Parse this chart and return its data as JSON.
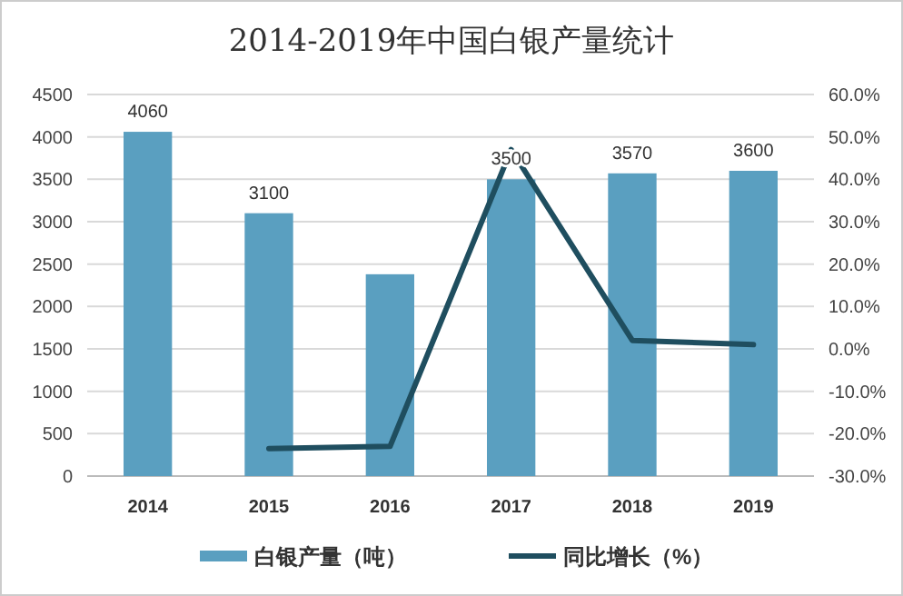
{
  "chart_data": {
    "type": "bar",
    "title": "2014-2019年中国白银产量统计",
    "categories": [
      "2014",
      "2015",
      "2016",
      "2017",
      "2018",
      "2019"
    ],
    "series": [
      {
        "name": "白银产量（吨）",
        "color": "#5a9fc0",
        "values": [
          4060,
          3100,
          2380,
          3500,
          3570,
          3600
        ],
        "value_labels": [
          "4060",
          "3100",
          null,
          "3500",
          "3570",
          "3600"
        ]
      },
      {
        "name": "同比增长（%）",
        "type": "line",
        "axis": "y2",
        "color": "#1f4e5f",
        "values": [
          null,
          -23.5,
          -23,
          47,
          2,
          1
        ]
      }
    ],
    "ylim": [
      0,
      4500
    ],
    "yticks": [
      0,
      500,
      1000,
      1500,
      2000,
      2500,
      3000,
      3500,
      4000,
      4500
    ],
    "y2lim": [
      -30,
      60
    ],
    "y2ticks": [
      {
        "value": -30,
        "label": "-30.0%"
      },
      {
        "value": -20,
        "label": "-20.0%"
      },
      {
        "value": -10,
        "label": "-10.0%"
      },
      {
        "value": 0,
        "label": "0.0%"
      },
      {
        "value": 10,
        "label": "10.0%"
      },
      {
        "value": 20,
        "label": "20.0%"
      },
      {
        "value": 30,
        "label": "30.0%"
      },
      {
        "value": 40,
        "label": "40.0%"
      },
      {
        "value": 50,
        "label": "50.0%"
      },
      {
        "value": 60,
        "label": "60.0%"
      }
    ],
    "grid": "y",
    "legend": "bottom"
  }
}
